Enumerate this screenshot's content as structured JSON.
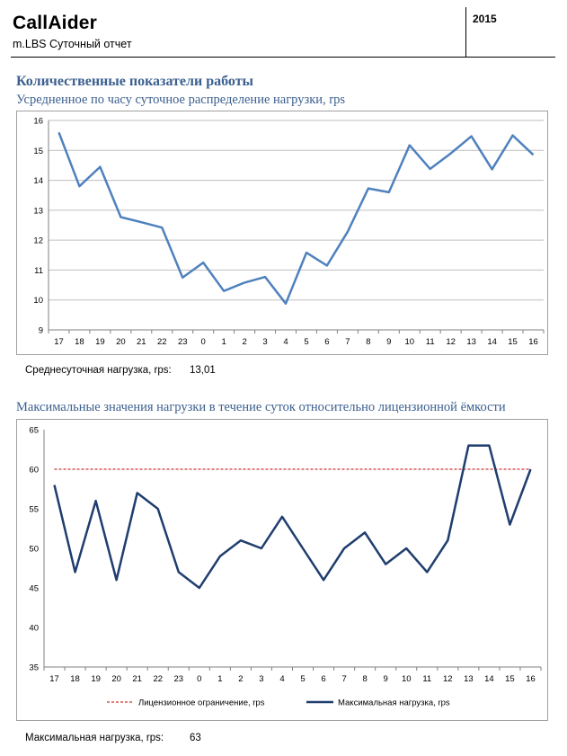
{
  "header": {
    "brand": "CallAider",
    "subtitle": "m.LBS Суточный отчет",
    "year": "2015"
  },
  "section_title": "Количественные показатели работы",
  "stats": {
    "avg_label": "Среднесуточная нагрузка, rps:",
    "avg_value": "13,01",
    "max_label": "Максимальная нагрузка, rps:",
    "max_value": "63"
  },
  "colors": {
    "series1": "#4f81bd",
    "series2": "#1f3d6e",
    "limit": "#c00000",
    "grid": "#bfbfbf"
  },
  "chart_data": [
    {
      "type": "line",
      "title": "Усредненное по часу суточное распределение нагрузки, rps",
      "categories": [
        "17",
        "18",
        "19",
        "20",
        "21",
        "22",
        "23",
        "0",
        "1",
        "2",
        "3",
        "4",
        "5",
        "6",
        "7",
        "8",
        "9",
        "10",
        "11",
        "12",
        "13",
        "14",
        "15",
        "16"
      ],
      "series": [
        {
          "values": [
            15.6,
            13.8,
            14.45,
            12.77,
            12.6,
            12.42,
            10.75,
            11.25,
            10.3,
            10.58,
            10.77,
            9.88,
            11.58,
            11.15,
            12.28,
            13.73,
            13.6,
            15.17,
            14.38,
            14.9,
            15.47,
            14.37,
            15.5,
            14.85
          ]
        }
      ],
      "ylim": [
        9,
        16
      ],
      "yticks": [
        9,
        10,
        11,
        12,
        13,
        14,
        15,
        16
      ],
      "grid": true,
      "legend": "none"
    },
    {
      "type": "line",
      "title": "Максимальные значения нагрузки в течение суток относительно лицензионной ёмкости",
      "categories": [
        "17",
        "18",
        "19",
        "20",
        "21",
        "22",
        "23",
        "0",
        "1",
        "2",
        "3",
        "4",
        "5",
        "6",
        "7",
        "8",
        "9",
        "10",
        "11",
        "12",
        "13",
        "14",
        "15",
        "16"
      ],
      "series": [
        {
          "name": "Лицензионное ограничение, rps",
          "values": [
            60,
            60,
            60,
            60,
            60,
            60,
            60,
            60,
            60,
            60,
            60,
            60,
            60,
            60,
            60,
            60,
            60,
            60,
            60,
            60,
            60,
            60,
            60,
            60
          ],
          "style": "dashed"
        },
        {
          "name": "Максимальная нагрузка, rps",
          "values": [
            58,
            47,
            56,
            46,
            57,
            55,
            47,
            45,
            49,
            51,
            50,
            54,
            50,
            46,
            50,
            52,
            48,
            50,
            47,
            51,
            63,
            63,
            53,
            60
          ],
          "style": "solid"
        }
      ],
      "ylim": [
        35,
        65
      ],
      "yticks": [
        35,
        40,
        45,
        50,
        55,
        60,
        65
      ],
      "grid": false,
      "legend": "bottom"
    }
  ]
}
